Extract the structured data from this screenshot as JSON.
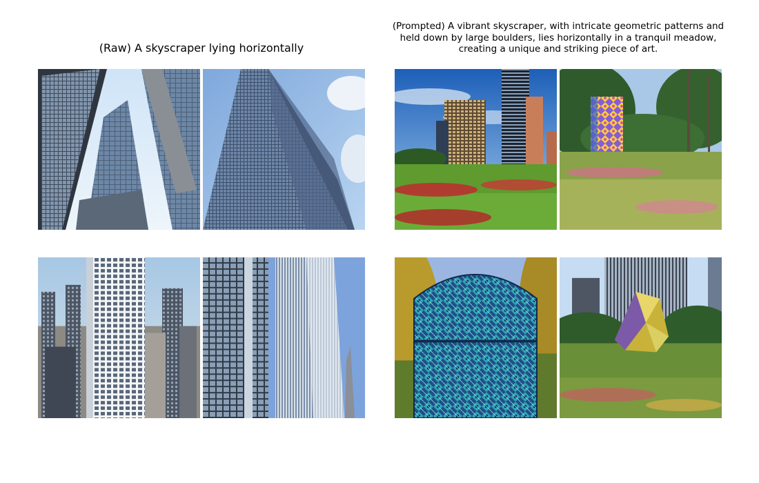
{
  "figure": {
    "left_panel": {
      "title": "(Raw) A skyscraper lying horizontally",
      "images": [
        {
          "id": "raw-1",
          "subject": "skyscraper"
        },
        {
          "id": "raw-2",
          "subject": "skyscraper"
        },
        {
          "id": "raw-3",
          "subject": "skyscraper"
        },
        {
          "id": "raw-4",
          "subject": "skyscraper"
        }
      ]
    },
    "right_panel": {
      "title": "(Prompted) A vibrant skyscraper, with intricate geometric patterns and held down by large boulders, lies horizontally in a tranquil meadow, creating a unique and striking piece of art.",
      "images": [
        {
          "id": "prompted-1",
          "subject": "skyscrapers in meadow"
        },
        {
          "id": "prompted-2",
          "subject": "patterned tower in meadow"
        },
        {
          "id": "prompted-3",
          "subject": "geometric glass tower"
        },
        {
          "id": "prompted-4",
          "subject": "faceted sculpture in meadow"
        }
      ]
    }
  },
  "colors": {
    "sky": "#9fc6ee",
    "glass": "#5b7390",
    "meadow": "#5e9a33",
    "flowers": "#c8303a"
  }
}
